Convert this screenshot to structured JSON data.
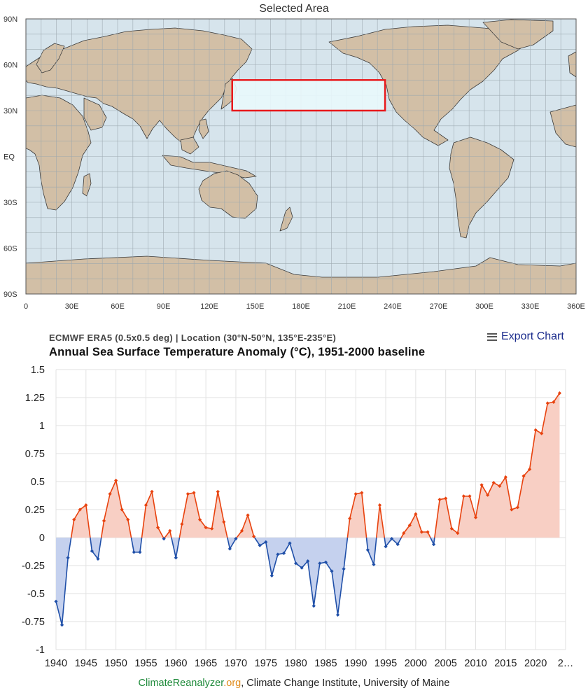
{
  "map": {
    "title": "Selected Area",
    "lat_labels": [
      "90N",
      "60N",
      "30N",
      "EQ",
      "30S",
      "60S",
      "90S"
    ],
    "lon_labels": [
      "0",
      "30E",
      "60E",
      "90E",
      "120E",
      "150E",
      "180E",
      "210E",
      "240E",
      "270E",
      "300E",
      "330E",
      "360E"
    ],
    "selection": {
      "lat_min": 30,
      "lat_max": 50,
      "lon_min": 135,
      "lon_max": 235
    },
    "colors": {
      "ocean": "#d6e4ec",
      "land": "#d2bfa6",
      "selection_border": "#e8191c",
      "selection_fill": "#e9f8fc",
      "grid": "#9aa6ad"
    }
  },
  "header": {
    "subtitle": "ECMWF ERA5 (0.5x0.5 deg) | Location (30°N-50°N, 135°E-235°E)",
    "title": "Annual Sea Surface Temperature Anomaly (°C), 1951-2000 baseline",
    "export_label": "Export Chart",
    "export_icon": "hamburger-menu-icon"
  },
  "footer": {
    "part1": "Climate",
    "part2": "Reanalyzer",
    "part3": ".org",
    "part4": ", Climate Change Institute, University of Maine"
  },
  "chart_data": {
    "type": "area",
    "title": "Annual Sea Surface Temperature Anomaly (°C), 1951-2000 baseline",
    "xlabel": "",
    "ylabel": "",
    "ylim": [
      -1,
      1.5
    ],
    "y_ticks": [
      "1.5",
      "1.25",
      "1",
      "0.75",
      "0.5",
      "0.25",
      "0",
      "-0.25",
      "-0.5",
      "-0.75",
      "-1"
    ],
    "x_ticks": [
      "1940",
      "1945",
      "1950",
      "1955",
      "1960",
      "1965",
      "1970",
      "1975",
      "1980",
      "1985",
      "1990",
      "1995",
      "2000",
      "2005",
      "2010",
      "2015",
      "2020",
      "2…"
    ],
    "grid": true,
    "colors": {
      "positive_line": "#e8420e",
      "positive_fill": "#f8cfc4",
      "negative_line": "#1f4fa8",
      "negative_fill": "#c5d1ee"
    },
    "x": [
      1940,
      1941,
      1942,
      1943,
      1944,
      1945,
      1946,
      1947,
      1948,
      1949,
      1950,
      1951,
      1952,
      1953,
      1954,
      1955,
      1956,
      1957,
      1958,
      1959,
      1960,
      1961,
      1962,
      1963,
      1964,
      1965,
      1966,
      1967,
      1968,
      1969,
      1970,
      1971,
      1972,
      1973,
      1974,
      1975,
      1976,
      1977,
      1978,
      1979,
      1980,
      1981,
      1982,
      1983,
      1984,
      1985,
      1986,
      1987,
      1988,
      1989,
      1990,
      1991,
      1992,
      1993,
      1994,
      1995,
      1996,
      1997,
      1998,
      1999,
      2000,
      2001,
      2002,
      2003,
      2004,
      2005,
      2006,
      2007,
      2008,
      2009,
      2010,
      2011,
      2012,
      2013,
      2014,
      2015,
      2016,
      2017,
      2018,
      2019,
      2020,
      2021,
      2022,
      2023,
      2024
    ],
    "values": [
      -0.57,
      -0.78,
      -0.18,
      0.16,
      0.25,
      0.29,
      -0.12,
      -0.19,
      0.15,
      0.39,
      0.51,
      0.25,
      0.16,
      -0.13,
      -0.13,
      0.29,
      0.41,
      0.09,
      -0.01,
      0.06,
      -0.18,
      0.12,
      0.39,
      0.4,
      0.16,
      0.09,
      0.08,
      0.41,
      0.14,
      -0.1,
      -0.01,
      0.06,
      0.2,
      0.01,
      -0.07,
      -0.04,
      -0.34,
      -0.15,
      -0.14,
      -0.05,
      -0.23,
      -0.27,
      -0.21,
      -0.61,
      -0.23,
      -0.22,
      -0.3,
      -0.69,
      -0.28,
      0.17,
      0.39,
      0.4,
      -0.11,
      -0.24,
      0.29,
      -0.08,
      -0.01,
      -0.06,
      0.04,
      0.11,
      0.21,
      0.05,
      0.05,
      -0.06,
      0.34,
      0.35,
      0.08,
      0.04,
      0.37,
      0.37,
      0.18,
      0.47,
      0.38,
      0.49,
      0.46,
      0.54,
      0.25,
      0.27,
      0.55,
      0.61,
      0.96,
      0.93,
      1.2,
      1.21,
      1.29
    ]
  }
}
